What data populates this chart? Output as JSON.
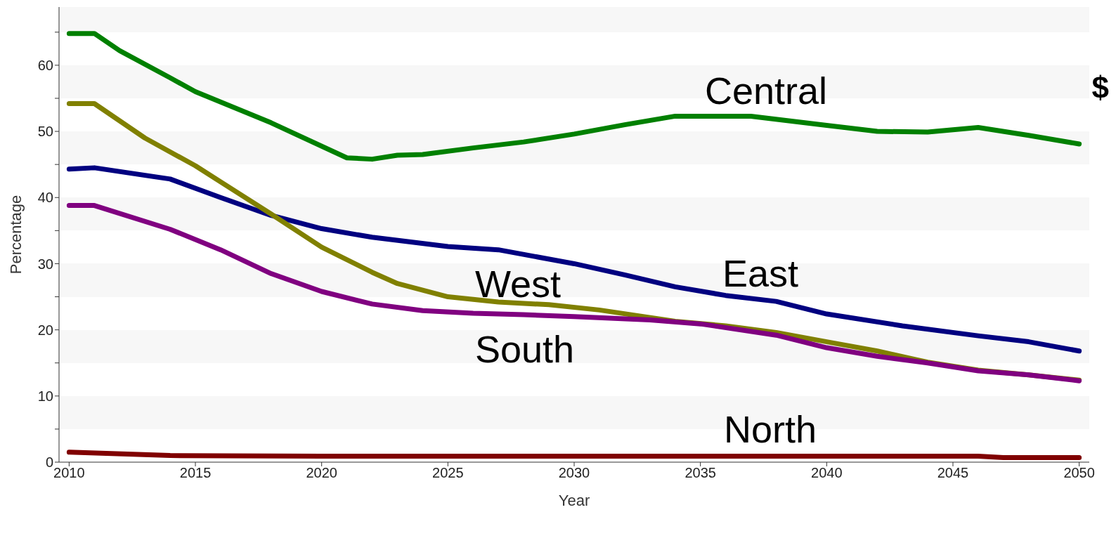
{
  "chart_data": {
    "type": "line",
    "xlabel": "Year",
    "ylabel": "Percentage",
    "annotations": [
      "$"
    ],
    "xlim": [
      2009.6,
      2050.4
    ],
    "xticks": [
      2010,
      2015,
      2020,
      2025,
      2030,
      2035,
      2040,
      2045,
      2050
    ],
    "ylim": [
      0,
      68.8
    ],
    "yticks": [
      0,
      {
        "value": 5,
        "label": null
      },
      10,
      {
        "value": 15,
        "label": null
      },
      20,
      {
        "value": 25,
        "label": null
      },
      30,
      {
        "value": 35,
        "label": null
      },
      40,
      {
        "value": 45,
        "label": null
      },
      50,
      {
        "value": 55,
        "label": null
      },
      60,
      {
        "value": 65,
        "label": null
      }
    ],
    "marker": "none",
    "line_style": "solid",
    "series": [
      {
        "name": "Central",
        "color": "#008000",
        "x": [
          2010,
          2011,
          2012,
          2014,
          2015,
          2018,
          2021,
          2022,
          2023,
          2024,
          2026,
          2028,
          2030,
          2032,
          2034,
          2037,
          2040,
          2042,
          2044,
          2046,
          2048,
          2050
        ],
        "values": [
          64.8,
          64.8,
          62.2,
          58.1,
          56,
          51.3,
          46,
          45.8,
          46.4,
          46.5,
          47.5,
          48.4,
          49.6,
          51,
          52.3,
          52.3,
          50.9,
          50,
          49.9,
          50.6,
          49.4,
          48.1
        ]
      },
      {
        "name": "East",
        "color": "#000080",
        "x": [
          2010,
          2011,
          2014,
          2016,
          2018,
          2020,
          2022,
          2025,
          2027,
          2030,
          2032,
          2034,
          2036,
          2038,
          2040,
          2043,
          2046,
          2048,
          2050
        ],
        "values": [
          44.3,
          44.5,
          42.8,
          40,
          37.3,
          35.3,
          34,
          32.6,
          32.1,
          30,
          28.3,
          26.5,
          25.2,
          24.3,
          22.4,
          20.6,
          19.1,
          18.2,
          16.8
        ]
      },
      {
        "name": "West",
        "color": "#808000",
        "x": [
          2010,
          2011,
          2013,
          2015,
          2018,
          2020,
          2022,
          2023,
          2025,
          2027,
          2029,
          2031,
          2034,
          2036,
          2038,
          2040,
          2042,
          2044,
          2046,
          2048,
          2050
        ],
        "values": [
          54.2,
          54.2,
          49,
          44.8,
          37.5,
          32.5,
          28.7,
          27,
          25,
          24.2,
          23.8,
          23,
          21.3,
          20.6,
          19.6,
          18.2,
          16.8,
          15.1,
          13.9,
          13.2,
          12.4
        ]
      },
      {
        "name": "South",
        "color": "#800080",
        "x": [
          2010,
          2011,
          2014,
          2016,
          2018,
          2020,
          2022,
          2024,
          2026,
          2028,
          2030,
          2033,
          2035,
          2038,
          2040,
          2042,
          2044,
          2046,
          2048,
          2050
        ],
        "values": [
          38.8,
          38.8,
          35.2,
          32.1,
          28.5,
          25.8,
          23.9,
          22.9,
          22.5,
          22.3,
          22,
          21.5,
          20.9,
          19.2,
          17.3,
          16,
          15,
          13.8,
          13.2,
          12.3
        ]
      },
      {
        "name": "North",
        "color": "#800000",
        "x": [
          2010,
          2014,
          2020,
          2046,
          2047,
          2050
        ],
        "values": [
          1.5,
          1,
          0.9,
          0.9,
          0.7,
          0.7
        ]
      }
    ]
  }
}
